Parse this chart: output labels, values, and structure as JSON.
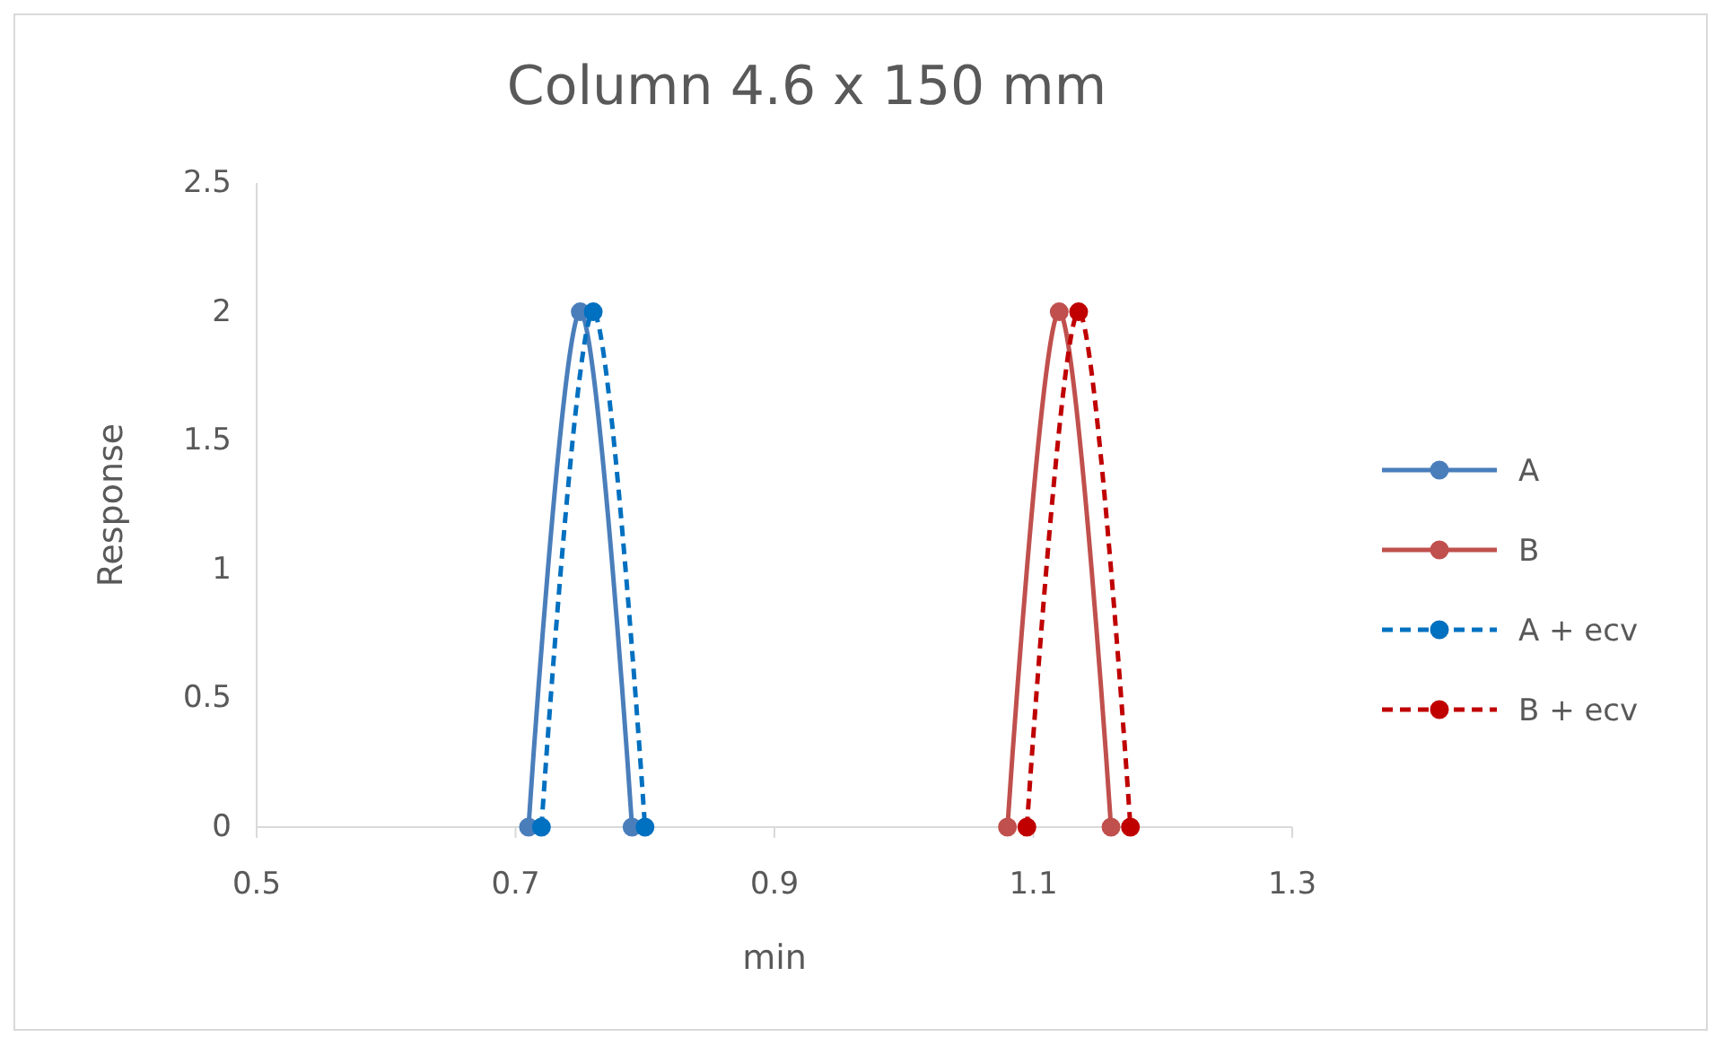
{
  "chart_data": {
    "type": "line",
    "title": "Column 4.6 x 150 mm",
    "xlabel": "min",
    "ylabel": "Response",
    "xlim": [
      0.5,
      1.3
    ],
    "xticks": [
      0.5,
      0.7,
      0.9,
      1.1,
      1.3
    ],
    "ylim": [
      0,
      2.5
    ],
    "yticks": [
      0,
      0.5,
      1,
      1.5,
      2,
      2.5
    ],
    "grid": false,
    "legend": "right",
    "marker": "circle",
    "series": [
      {
        "name": "A",
        "color": "#4a7ebb",
        "x": [
          0.71,
          0.75,
          0.79
        ],
        "values": [
          0,
          2,
          0
        ],
        "line_style": "solid"
      },
      {
        "name": "B",
        "color": "#c0504d",
        "x": [
          1.08,
          1.12,
          1.16
        ],
        "values": [
          0,
          2,
          0
        ],
        "line_style": "solid"
      },
      {
        "name": "A + ecv",
        "color": "#0070c0",
        "x": [
          0.72,
          0.76,
          0.8
        ],
        "values": [
          0,
          2,
          0
        ],
        "line_style": "dashed"
      },
      {
        "name": "B + ecv",
        "color": "#c00000",
        "x": [
          1.095,
          1.135,
          1.175
        ],
        "values": [
          0,
          2,
          0
        ],
        "line_style": "dashed"
      }
    ]
  }
}
